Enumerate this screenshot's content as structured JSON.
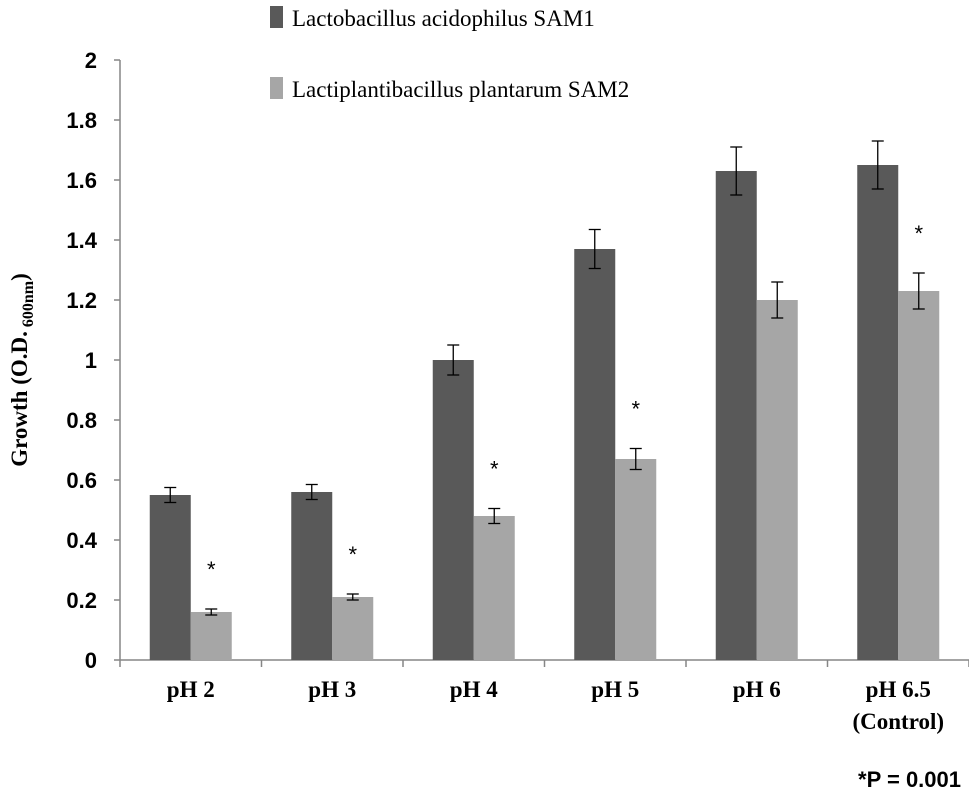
{
  "chart_data": {
    "type": "bar",
    "title": "",
    "xlabel": "",
    "ylabel": {
      "main": "Growth (O.D.",
      "subscript": "600nm",
      "close": ")"
    },
    "ylim": [
      0,
      2
    ],
    "yticks": [
      "0",
      "0.2",
      "0.4",
      "0.6",
      "0.8",
      "1",
      "1.2",
      "1.4",
      "1.6",
      "1.8",
      "2"
    ],
    "ytick_values": [
      0,
      0.2,
      0.4,
      0.6,
      0.8,
      1,
      1.2,
      1.4,
      1.6,
      1.8,
      2
    ],
    "categories": [
      {
        "line1": "pH 2",
        "line2": ""
      },
      {
        "line1": "pH 3",
        "line2": ""
      },
      {
        "line1": "pH 4",
        "line2": ""
      },
      {
        "line1": "pH 5",
        "line2": ""
      },
      {
        "line1": "pH 6",
        "line2": ""
      },
      {
        "line1": "pH 6.5",
        "line2": "(Control)"
      }
    ],
    "series": [
      {
        "name": "Lactobacillus acidophilus SAM1",
        "color": "#595959",
        "values": [
          0.55,
          0.56,
          1.0,
          1.37,
          1.63,
          1.65
        ],
        "errors": [
          0.025,
          0.025,
          0.05,
          0.065,
          0.08,
          0.08
        ]
      },
      {
        "name": "Lactiplantibacillus plantarum SAM2",
        "color": "#a6a6a6",
        "values": [
          0.16,
          0.21,
          0.48,
          0.67,
          1.2,
          1.23
        ],
        "errors": [
          0.01,
          0.01,
          0.025,
          0.035,
          0.06,
          0.06
        ]
      }
    ],
    "significance": {
      "marker": "*",
      "flags": [
        true,
        true,
        true,
        true,
        false,
        true
      ]
    },
    "legend_position": "top",
    "footnote": "*P = 0.001",
    "grid": false
  }
}
